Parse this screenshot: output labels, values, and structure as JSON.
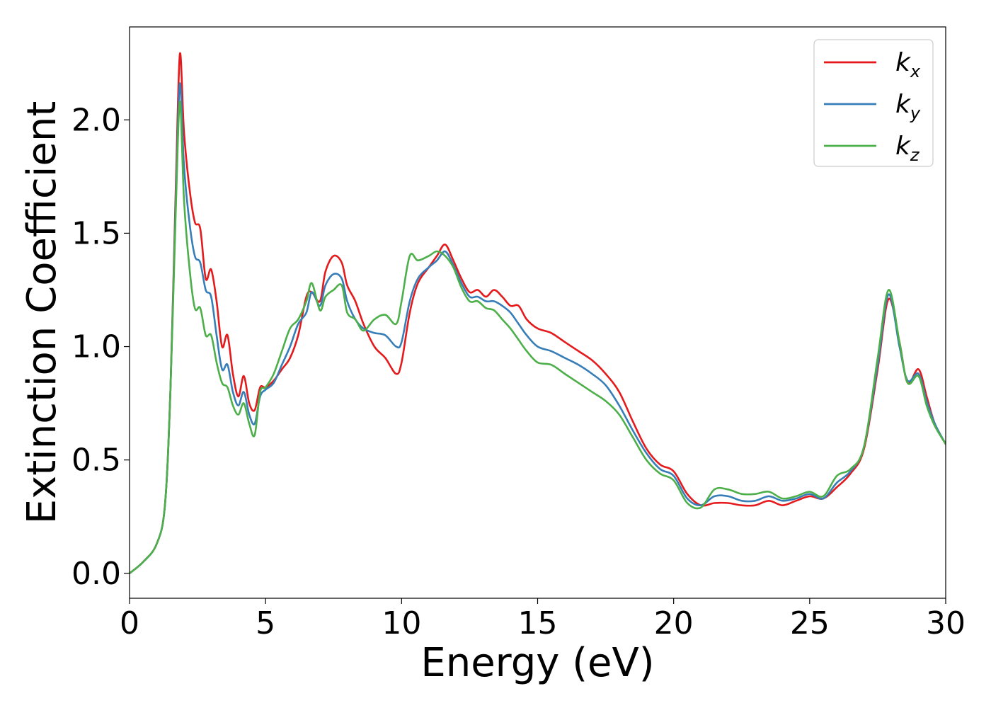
{
  "chart_data": {
    "type": "line",
    "xlabel": "Energy (eV)",
    "ylabel": "Extinction Coefficient",
    "xlim": [
      0,
      30
    ],
    "ylim": [
      -0.11,
      2.41
    ],
    "xticks": [
      0,
      5,
      10,
      15,
      20,
      25,
      30
    ],
    "xtick_labels": [
      "0",
      "5",
      "10",
      "15",
      "20",
      "25",
      "30"
    ],
    "yticks": [
      0.0,
      0.5,
      1.0,
      1.5,
      2.0
    ],
    "ytick_labels": [
      "0.0",
      "0.5",
      "1.0",
      "1.5",
      "2.0"
    ],
    "grid": false,
    "legend_position": "top-right",
    "series": [
      {
        "name": "k_x",
        "label_main": "k",
        "label_sub": "x",
        "color": "#e41a1c",
        "x": [
          0,
          0.5,
          1.0,
          1.3,
          1.5,
          1.7,
          1.85,
          2.0,
          2.2,
          2.4,
          2.6,
          2.8,
          3.0,
          3.2,
          3.4,
          3.6,
          3.8,
          4.0,
          4.2,
          4.4,
          4.6,
          4.8,
          5.0,
          5.3,
          5.6,
          5.9,
          6.2,
          6.5,
          6.7,
          7.0,
          7.2,
          7.5,
          7.8,
          8.0,
          8.3,
          8.6,
          9.0,
          9.4,
          9.8,
          10.0,
          10.3,
          10.6,
          11.0,
          11.3,
          11.6,
          11.9,
          12.2,
          12.5,
          12.8,
          13.1,
          13.4,
          13.7,
          14.0,
          14.3,
          14.6,
          15.0,
          15.5,
          16.0,
          16.5,
          17.0,
          17.5,
          18.0,
          18.5,
          19.0,
          19.5,
          20.0,
          20.5,
          21.0,
          21.5,
          22.0,
          22.5,
          23.0,
          23.5,
          24.0,
          24.5,
          25.0,
          25.5,
          26.0,
          26.5,
          27.0,
          27.5,
          27.9,
          28.3,
          28.6,
          29.0,
          29.3,
          29.6,
          30.0
        ],
        "values": [
          0.0,
          0.05,
          0.13,
          0.3,
          0.8,
          1.7,
          2.29,
          1.95,
          1.7,
          1.55,
          1.52,
          1.3,
          1.34,
          1.2,
          1.0,
          1.05,
          0.88,
          0.78,
          0.87,
          0.75,
          0.72,
          0.82,
          0.82,
          0.85,
          0.9,
          0.95,
          1.05,
          1.22,
          1.24,
          1.2,
          1.33,
          1.4,
          1.37,
          1.27,
          1.2,
          1.1,
          1.0,
          0.95,
          0.88,
          0.93,
          1.15,
          1.28,
          1.35,
          1.4,
          1.45,
          1.38,
          1.3,
          1.24,
          1.25,
          1.22,
          1.25,
          1.22,
          1.18,
          1.18,
          1.12,
          1.08,
          1.06,
          1.02,
          0.98,
          0.94,
          0.88,
          0.8,
          0.67,
          0.55,
          0.48,
          0.45,
          0.35,
          0.3,
          0.31,
          0.31,
          0.3,
          0.3,
          0.32,
          0.3,
          0.32,
          0.34,
          0.33,
          0.38,
          0.44,
          0.55,
          0.9,
          1.21,
          1.02,
          0.84,
          0.9,
          0.78,
          0.66,
          0.57
        ]
      },
      {
        "name": "k_y",
        "label_main": "k",
        "label_sub": "y",
        "color": "#377eb8",
        "x": [
          0,
          0.5,
          1.0,
          1.3,
          1.5,
          1.7,
          1.85,
          2.0,
          2.2,
          2.4,
          2.6,
          2.8,
          3.0,
          3.2,
          3.4,
          3.6,
          3.8,
          4.0,
          4.2,
          4.4,
          4.6,
          4.8,
          5.0,
          5.3,
          5.6,
          5.9,
          6.2,
          6.5,
          6.7,
          7.0,
          7.2,
          7.5,
          7.8,
          8.0,
          8.3,
          8.6,
          9.0,
          9.4,
          9.8,
          10.0,
          10.3,
          10.6,
          11.0,
          11.3,
          11.6,
          11.9,
          12.2,
          12.5,
          12.8,
          13.1,
          13.4,
          13.7,
          14.0,
          14.3,
          14.6,
          15.0,
          15.5,
          16.0,
          16.5,
          17.0,
          17.5,
          18.0,
          18.5,
          19.0,
          19.5,
          20.0,
          20.5,
          21.0,
          21.5,
          22.0,
          22.5,
          23.0,
          23.5,
          24.0,
          24.5,
          25.0,
          25.5,
          26.0,
          26.5,
          27.0,
          27.5,
          27.9,
          28.3,
          28.6,
          29.0,
          29.3,
          29.6,
          30.0
        ],
        "values": [
          0.0,
          0.05,
          0.13,
          0.3,
          0.8,
          1.65,
          2.16,
          1.8,
          1.55,
          1.4,
          1.37,
          1.25,
          1.22,
          1.05,
          0.9,
          0.92,
          0.8,
          0.74,
          0.8,
          0.7,
          0.66,
          0.78,
          0.81,
          0.84,
          0.92,
          1.0,
          1.1,
          1.15,
          1.24,
          1.18,
          1.27,
          1.32,
          1.3,
          1.2,
          1.12,
          1.08,
          1.06,
          1.05,
          1.0,
          1.02,
          1.2,
          1.3,
          1.35,
          1.38,
          1.42,
          1.36,
          1.28,
          1.22,
          1.22,
          1.2,
          1.2,
          1.18,
          1.15,
          1.1,
          1.05,
          1.0,
          0.98,
          0.95,
          0.92,
          0.88,
          0.83,
          0.74,
          0.63,
          0.53,
          0.46,
          0.43,
          0.33,
          0.3,
          0.34,
          0.34,
          0.32,
          0.32,
          0.34,
          0.32,
          0.33,
          0.35,
          0.33,
          0.4,
          0.45,
          0.56,
          0.92,
          1.23,
          1.0,
          0.85,
          0.88,
          0.76,
          0.66,
          0.57
        ]
      },
      {
        "name": "k_z",
        "label_main": "k",
        "label_sub": "z",
        "color": "#4daf4a",
        "x": [
          0,
          0.5,
          1.0,
          1.3,
          1.5,
          1.7,
          1.85,
          2.0,
          2.2,
          2.4,
          2.6,
          2.8,
          3.0,
          3.2,
          3.4,
          3.6,
          3.8,
          4.0,
          4.2,
          4.4,
          4.6,
          4.8,
          5.0,
          5.3,
          5.6,
          5.9,
          6.2,
          6.5,
          6.7,
          7.0,
          7.2,
          7.5,
          7.8,
          8.0,
          8.3,
          8.6,
          9.0,
          9.4,
          9.8,
          10.0,
          10.3,
          10.6,
          11.0,
          11.3,
          11.6,
          11.9,
          12.2,
          12.5,
          12.8,
          13.1,
          13.4,
          13.7,
          14.0,
          14.3,
          14.6,
          15.0,
          15.5,
          16.0,
          16.5,
          17.0,
          17.5,
          18.0,
          18.5,
          19.0,
          19.5,
          20.0,
          20.5,
          21.0,
          21.5,
          22.0,
          22.5,
          23.0,
          23.5,
          24.0,
          24.5,
          25.0,
          25.5,
          26.0,
          26.5,
          27.0,
          27.5,
          27.9,
          28.3,
          28.6,
          29.0,
          29.3,
          29.6,
          30.0
        ],
        "values": [
          0.0,
          0.05,
          0.13,
          0.3,
          0.8,
          1.6,
          2.08,
          1.65,
          1.35,
          1.17,
          1.17,
          1.05,
          1.05,
          0.93,
          0.84,
          0.82,
          0.74,
          0.7,
          0.75,
          0.66,
          0.61,
          0.8,
          0.82,
          0.88,
          0.98,
          1.08,
          1.12,
          1.2,
          1.28,
          1.16,
          1.22,
          1.25,
          1.27,
          1.15,
          1.12,
          1.07,
          1.12,
          1.14,
          1.1,
          1.2,
          1.4,
          1.38,
          1.4,
          1.42,
          1.4,
          1.35,
          1.26,
          1.2,
          1.2,
          1.17,
          1.16,
          1.12,
          1.08,
          1.03,
          0.98,
          0.93,
          0.92,
          0.88,
          0.84,
          0.8,
          0.76,
          0.7,
          0.6,
          0.5,
          0.44,
          0.41,
          0.31,
          0.29,
          0.37,
          0.37,
          0.35,
          0.35,
          0.36,
          0.33,
          0.34,
          0.36,
          0.34,
          0.43,
          0.46,
          0.56,
          0.95,
          1.25,
          1.02,
          0.84,
          0.87,
          0.74,
          0.65,
          0.57
        ]
      }
    ]
  }
}
